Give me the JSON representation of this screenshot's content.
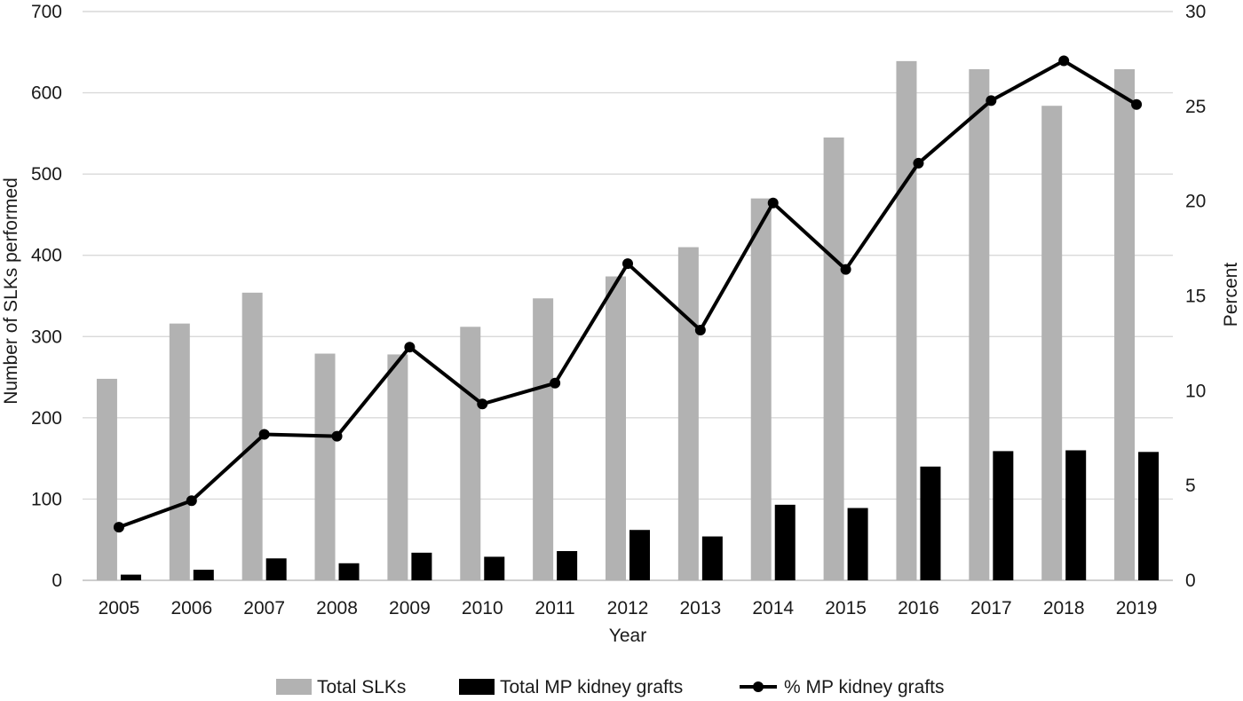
{
  "chart_data": {
    "type": "bar",
    "title": "",
    "xlabel": "Year",
    "ylabel": "Number of SLKs performed",
    "y2label": "Percent",
    "ylim": [
      0,
      700
    ],
    "y2lim": [
      0,
      30
    ],
    "yticks": [
      "0",
      "100",
      "200",
      "300",
      "400",
      "500",
      "600",
      "700"
    ],
    "y2ticks": [
      "0",
      "5",
      "10",
      "15",
      "20",
      "25",
      "30"
    ],
    "grid": true,
    "legend_position": "bottom",
    "categories": [
      "2005",
      "2006",
      "2007",
      "2008",
      "2009",
      "2010",
      "2011",
      "2012",
      "2013",
      "2014",
      "2015",
      "2016",
      "2017",
      "2018",
      "2019"
    ],
    "series": [
      {
        "name": "Total SLKs",
        "type": "bar",
        "axis": "left",
        "color": "#b2b2b2",
        "values": [
          248,
          316,
          354,
          279,
          278,
          312,
          347,
          374,
          410,
          470,
          545,
          639,
          629,
          584,
          629
        ]
      },
      {
        "name": "Total MP kidney grafts",
        "type": "bar",
        "axis": "left",
        "color": "#000000",
        "values": [
          7,
          13,
          27,
          21,
          34,
          29,
          36,
          62,
          54,
          93,
          89,
          140,
          159,
          160,
          158
        ]
      },
      {
        "name": "% MP kidney grafts",
        "type": "line",
        "axis": "right",
        "color": "#000000",
        "values": [
          2.8,
          4.2,
          7.7,
          7.6,
          12.3,
          9.3,
          10.4,
          16.7,
          13.2,
          19.9,
          16.4,
          22.0,
          25.3,
          27.4,
          25.1
        ]
      }
    ]
  }
}
